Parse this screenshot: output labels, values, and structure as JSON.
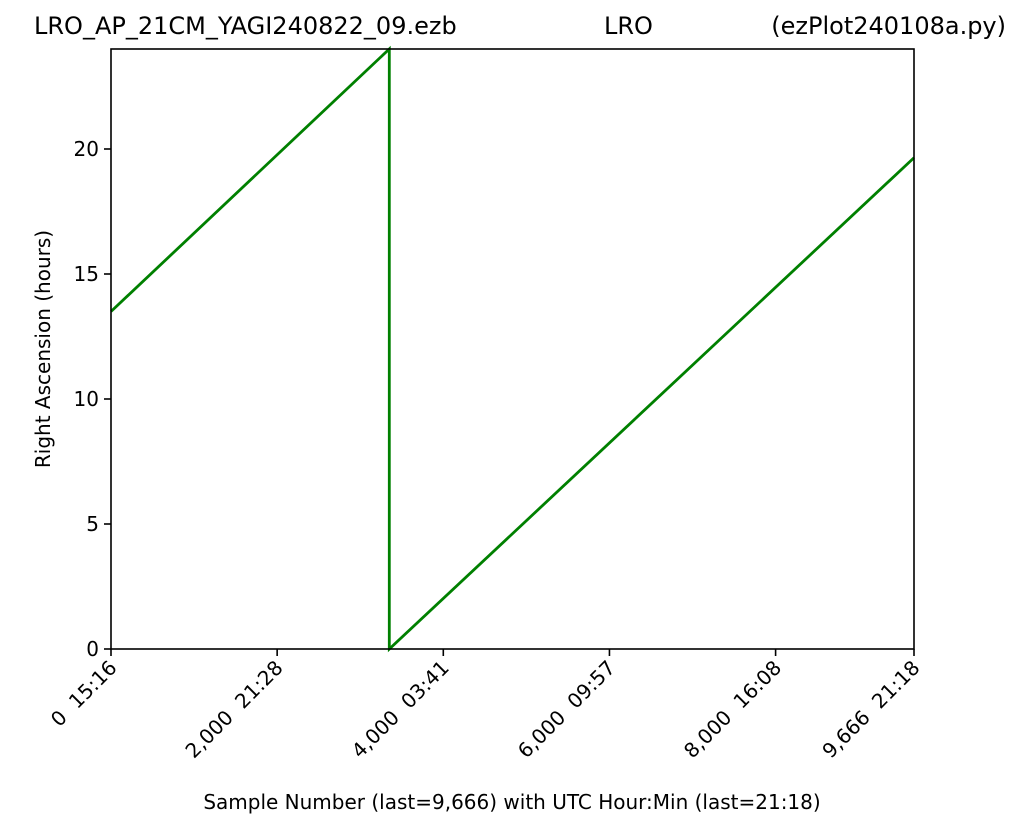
{
  "chart_data": {
    "type": "line",
    "title_left": "LRO_AP_21CM_YAGI240822_09.ezb",
    "title_center": "LRO",
    "title_right": "(ezPlot240108a.py)",
    "xlabel": "Sample Number (last=9,666) with UTC Hour:Min (last=21:18)",
    "ylabel": "Right Ascension (hours)",
    "xlim": [
      0,
      9666
    ],
    "ylim": [
      0,
      24
    ],
    "grid": false,
    "x_ticks": [
      {
        "value": 0,
        "label": "0  15:16"
      },
      {
        "value": 2000,
        "label": "2,000  21:28"
      },
      {
        "value": 4000,
        "label": "4,000  03:41"
      },
      {
        "value": 6000,
        "label": "6,000  09:57"
      },
      {
        "value": 8000,
        "label": "8,000  16:08"
      },
      {
        "value": 9666,
        "label": "9,666  21:18"
      }
    ],
    "y_ticks": [
      {
        "value": 0,
        "label": "0"
      },
      {
        "value": 5,
        "label": "5"
      },
      {
        "value": 10,
        "label": "10"
      },
      {
        "value": 15,
        "label": "15"
      },
      {
        "value": 20,
        "label": "20"
      }
    ],
    "series": [
      {
        "color": "#008000",
        "x": [
          0,
          3350,
          3350,
          9666
        ],
        "y": [
          13.5,
          24.0,
          0.0,
          19.65
        ]
      }
    ]
  }
}
